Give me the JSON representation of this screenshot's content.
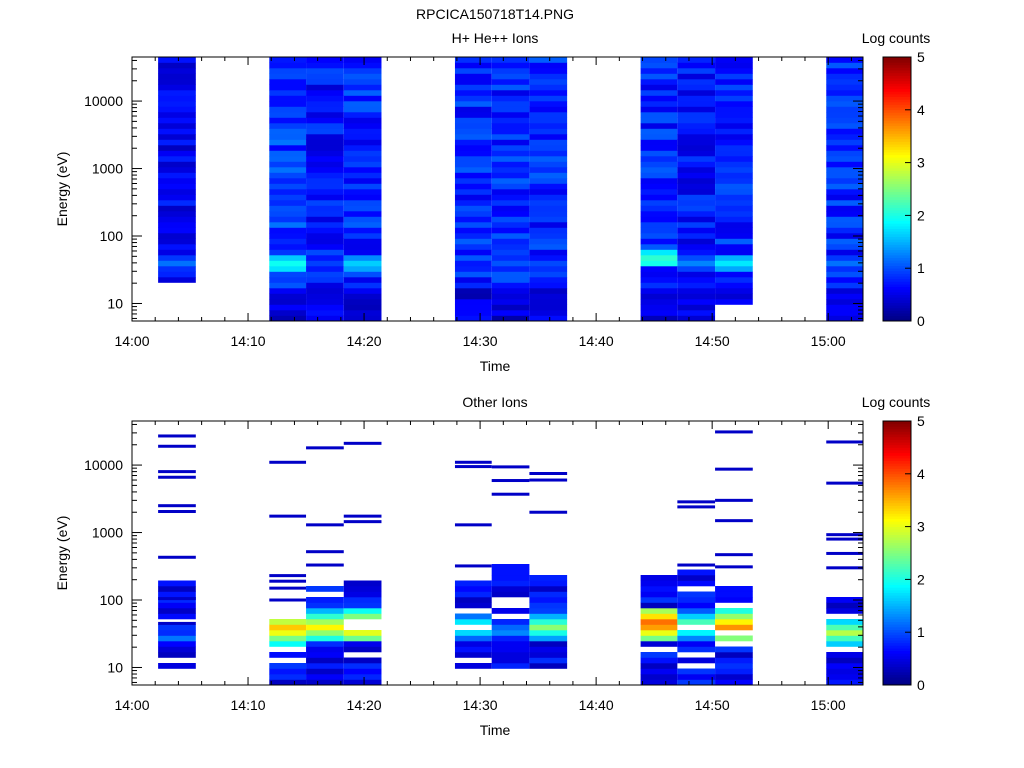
{
  "figure_title": "RPCICA150718T14.PNG",
  "chart_data": [
    {
      "type": "heatmap",
      "title": "H+ He++ Ions",
      "xlabel": "Time",
      "ylabel": "Energy (eV)",
      "x_ticks": [
        "14:00",
        "14:10",
        "14:20",
        "14:30",
        "14:40",
        "14:50",
        "15:00"
      ],
      "y_ticks": [
        "10",
        "100",
        "1000",
        "10000"
      ],
      "y_scale": "log",
      "ylim": [
        5.5,
        45000
      ],
      "xlim": [
        "14:00",
        "15:03"
      ],
      "colorbar": {
        "label": "Log counts",
        "ticks": [
          "0",
          "1",
          "2",
          "3",
          "4",
          "5"
        ],
        "range": [
          0,
          5
        ]
      },
      "columns": [
        {
          "start": "14:02:15",
          "end": "14:05:30",
          "energy_range": [
            15,
            45000
          ],
          "gaps": [
            [
              15,
              21
            ]
          ],
          "dominant_level": 0.6,
          "low_energy_peak": {
            "energy": 40,
            "level": 1.2
          }
        },
        {
          "start": "14:11:50",
          "end": "14:15:00",
          "energy_range": [
            5.5,
            45000
          ],
          "gaps": [],
          "dominant_level": 0.9,
          "low_energy_peak": {
            "energy": 38,
            "level": 2.0
          }
        },
        {
          "start": "14:15:00",
          "end": "14:18:15",
          "energy_range": [
            5.5,
            45000
          ],
          "gaps": [],
          "dominant_level": 0.7,
          "low_energy_peak": {
            "energy": 38,
            "level": 1.0
          }
        },
        {
          "start": "14:18:15",
          "end": "14:21:30",
          "energy_range": [
            5.5,
            45000
          ],
          "gaps": [],
          "dominant_level": 0.8,
          "low_energy_peak": {
            "energy": 38,
            "level": 1.7
          }
        },
        {
          "start": "14:27:50",
          "end": "14:31:00",
          "energy_range": [
            5.5,
            45000
          ],
          "gaps": [
            [
              75,
              80
            ]
          ],
          "dominant_level": 0.8,
          "low_energy_peak": {
            "energy": 30,
            "level": 0.7
          }
        },
        {
          "start": "14:31:00",
          "end": "14:34:15",
          "energy_range": [
            5.5,
            45000
          ],
          "gaps": [],
          "dominant_level": 0.8,
          "low_energy_peak": {
            "energy": 30,
            "level": 0.7
          }
        },
        {
          "start": "14:34:15",
          "end": "14:37:30",
          "energy_range": [
            5.5,
            45000
          ],
          "gaps": [],
          "dominant_level": 0.8,
          "low_energy_peak": {
            "energy": 40,
            "level": 1.0
          }
        },
        {
          "start": "14:43:50",
          "end": "14:47:00",
          "energy_range": [
            5.5,
            45000
          ],
          "gaps": [],
          "dominant_level": 0.8,
          "low_energy_peak": {
            "energy": 45,
            "level": 2.2
          }
        },
        {
          "start": "14:47:00",
          "end": "14:50:15",
          "energy_range": [
            5.5,
            45000
          ],
          "gaps": [],
          "dominant_level": 0.7,
          "low_energy_peak": {
            "energy": 40,
            "level": 1.3
          }
        },
        {
          "start": "14:50:15",
          "end": "14:53:30",
          "energy_range": [
            9.5,
            45000
          ],
          "gaps": [
            [
              115,
              120
            ]
          ],
          "dominant_level": 0.8,
          "low_energy_peak": {
            "energy": 40,
            "level": 1.8
          }
        },
        {
          "start": "14:59:50",
          "end": "15:03:00",
          "energy_range": [
            5.5,
            45000
          ],
          "gaps": [],
          "dominant_level": 0.8,
          "low_energy_peak": {
            "energy": 40,
            "level": 1.2
          }
        }
      ]
    },
    {
      "type": "heatmap",
      "title": "Other Ions",
      "xlabel": "Time",
      "ylabel": "Energy (eV)",
      "x_ticks": [
        "14:00",
        "14:10",
        "14:20",
        "14:30",
        "14:40",
        "14:50",
        "15:00"
      ],
      "y_ticks": [
        "10",
        "100",
        "1000",
        "10000"
      ],
      "y_scale": "log",
      "ylim": [
        5.5,
        45000
      ],
      "xlim": [
        "14:00",
        "15:03"
      ],
      "colorbar": {
        "label": "Log counts",
        "ticks": [
          "0",
          "1",
          "2",
          "3",
          "4",
          "5"
        ],
        "range": [
          0,
          5
        ]
      },
      "columns": [
        {
          "start": "14:02:15",
          "end": "14:05:30",
          "energy_range": [
            9.5,
            200
          ],
          "lines": [
            27000,
            19000,
            8000,
            6600,
            2500,
            2050,
            430,
            105,
            45
          ],
          "peak": {
            "energy": 28,
            "level": 1.3
          }
        },
        {
          "start": "14:11:50",
          "end": "14:15:00",
          "energy_range": [
            5.5,
            60
          ],
          "lines": [
            11000,
            1750,
            230,
            190,
            150,
            100
          ],
          "peak": {
            "energy": 38,
            "level": 3.5
          }
        },
        {
          "start": "14:15:00",
          "end": "14:18:15",
          "energy_range": [
            5.5,
            160
          ],
          "lines": [
            18000,
            1300,
            520,
            330
          ],
          "peak": {
            "energy": 40,
            "level": 3.2
          }
        },
        {
          "start": "14:18:15",
          "end": "14:21:30",
          "energy_range": [
            5.5,
            200
          ],
          "lines": [
            21000,
            1750,
            1450
          ],
          "peak": {
            "energy": 40,
            "level": 3.6
          }
        },
        {
          "start": "14:27:50",
          "end": "14:31:00",
          "energy_range": [
            9.5,
            200
          ],
          "lines": [
            11000,
            9500,
            1300,
            320
          ],
          "peak": {
            "energy": 40,
            "level": 2.3
          }
        },
        {
          "start": "14:31:00",
          "end": "14:34:15",
          "energy_range": [
            9.5,
            330
          ],
          "lines": [
            9400,
            5900,
            3700
          ],
          "peak": {
            "energy": 35,
            "level": 1.5
          }
        },
        {
          "start": "14:34:15",
          "end": "14:37:30",
          "energy_range": [
            9.5,
            250
          ],
          "lines": [
            7500,
            6000,
            2000
          ],
          "peak": {
            "energy": 40,
            "level": 2.6
          }
        },
        {
          "start": "14:43:50",
          "end": "14:47:00",
          "energy_range": [
            5.5,
            250
          ],
          "lines": [],
          "peak": {
            "energy": 45,
            "level": 4.0
          }
        },
        {
          "start": "14:47:00",
          "end": "14:50:15",
          "energy_range": [
            5.5,
            300
          ],
          "lines": [
            2850,
            2400,
            330
          ],
          "peak": {
            "energy": 42,
            "level": 2.6
          }
        },
        {
          "start": "14:50:15",
          "end": "14:53:30",
          "energy_range": [
            5.5,
            160
          ],
          "lines": [
            31000,
            8700,
            3000,
            1500,
            470,
            310
          ],
          "peak": {
            "energy": 40,
            "level": 3.7
          }
        },
        {
          "start": "14:59:50",
          "end": "15:03:00",
          "energy_range": [
            5.5,
            200
          ],
          "lines": [
            22000,
            5400,
            930,
            800,
            490,
            300
          ],
          "peak": {
            "energy": 33,
            "level": 2.8
          }
        }
      ]
    }
  ]
}
